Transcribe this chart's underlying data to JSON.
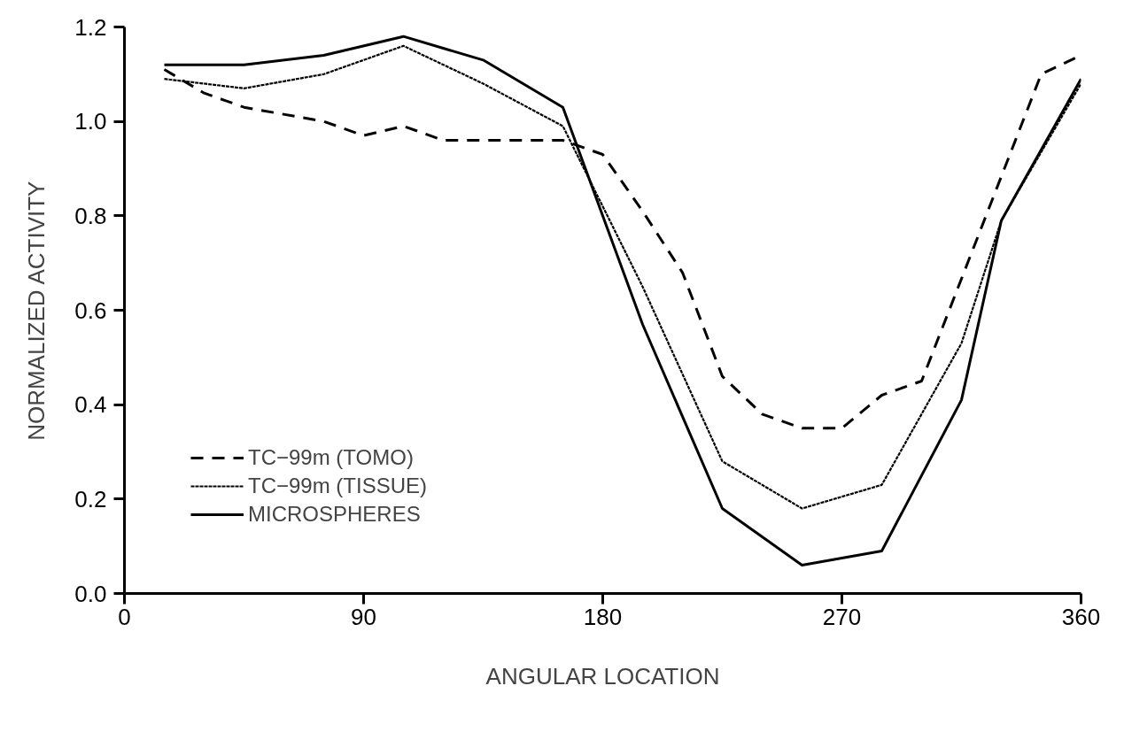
{
  "chart_data": {
    "type": "line",
    "xlabel": "ANGULAR LOCATION",
    "ylabel": "NORMALIZED ACTIVITY",
    "xlim": [
      0,
      360
    ],
    "xticks": [
      0,
      90,
      180,
      270,
      360
    ],
    "ylim": [
      0,
      1.2
    ],
    "yticks": [
      {
        "value": 0,
        "label": "0.0"
      },
      0.2,
      0.4,
      0.6,
      0.8,
      {
        "value": 1,
        "label": "1.0"
      },
      1.2
    ],
    "grid": false,
    "legend": "bottom left",
    "marker": "none",
    "series": [
      {
        "name": "TC−99m (TOMO)",
        "color": "#000000",
        "line_style": "dashed",
        "x": [
          15,
          30,
          45,
          75,
          90,
          105,
          120,
          135,
          150,
          165,
          180,
          195,
          210,
          225,
          240,
          255,
          270,
          285,
          300,
          345,
          360
        ],
        "values": [
          1.11,
          1.06,
          1.03,
          1.0,
          0.97,
          0.99,
          0.96,
          0.96,
          0.96,
          0.96,
          0.93,
          0.81,
          0.68,
          0.46,
          0.38,
          0.35,
          0.35,
          0.42,
          0.45,
          1.1,
          1.14
        ]
      },
      {
        "name": "TC−99m (TISSUE)",
        "color": "#000000",
        "line_style": "dotted",
        "x": [
          15,
          45,
          75,
          105,
          135,
          165,
          195,
          225,
          255,
          285,
          315,
          330,
          360
        ],
        "values": [
          1.09,
          1.07,
          1.1,
          1.16,
          1.08,
          0.99,
          0.65,
          0.28,
          0.18,
          0.23,
          0.53,
          0.79,
          1.08
        ]
      },
      {
        "name": "MICROSPHERES",
        "color": "#000000",
        "line_style": "solid",
        "x": [
          15,
          45,
          75,
          105,
          135,
          165,
          195,
          225,
          255,
          285,
          315,
          330,
          360
        ],
        "values": [
          1.12,
          1.12,
          1.14,
          1.18,
          1.13,
          1.03,
          0.57,
          0.18,
          0.06,
          0.09,
          0.41,
          0.79,
          1.09
        ]
      }
    ]
  }
}
